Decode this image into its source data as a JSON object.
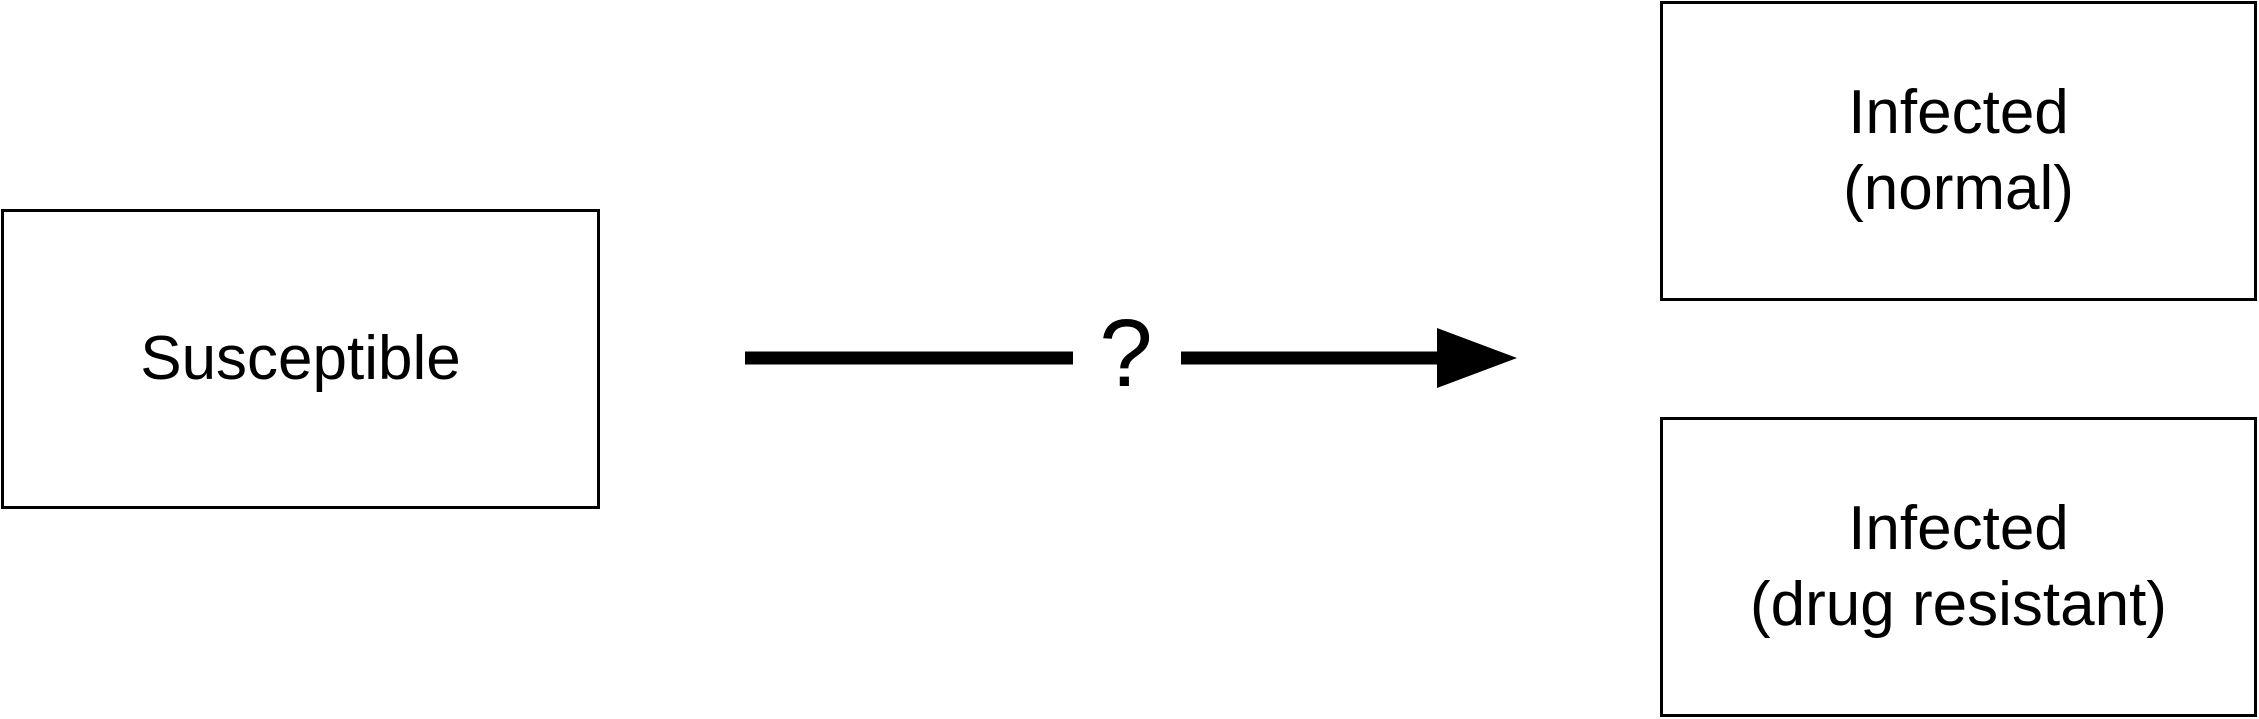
{
  "boxes": {
    "susceptible": {
      "line1": "Susceptible"
    },
    "infected_normal": {
      "line1": "Infected",
      "line2": "(normal)"
    },
    "infected_drug": {
      "line1": "Infected",
      "line2": "(drug resistant)"
    }
  },
  "transition": {
    "label": "?"
  },
  "colors": {
    "stroke": "#000000",
    "background": "#ffffff"
  }
}
